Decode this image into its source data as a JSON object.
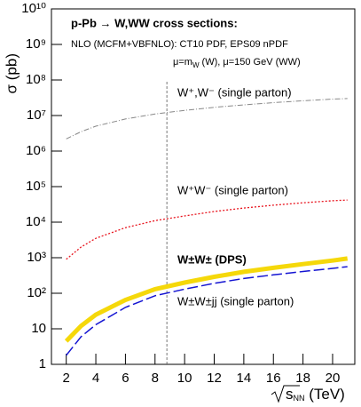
{
  "chart_data": {
    "type": "line",
    "title": "p-Pb → W,WW cross sections:",
    "subtitle": "NLO (MCFM+VBFNLO): CT10 PDF, EPS09 nPDF",
    "scale_note": {
      "text": "μ=m",
      "sub": "W",
      "rest": " (W), μ=150 GeV (WW)"
    },
    "ylabel": "σ (pb)",
    "xlabel": {
      "text": "s",
      "sub": "NN",
      "rest": " (TeV)"
    },
    "x": [
      2,
      3,
      4,
      6,
      8,
      10,
      12,
      14,
      16,
      18,
      20,
      21
    ],
    "series": [
      {
        "name": "W⁺,W⁻ (single parton)",
        "color": "#888888",
        "style": "dashdot",
        "values": [
          2200000,
          3500000,
          5000000,
          8000000,
          11000000,
          14000000,
          17000000,
          20000000,
          23000000,
          26000000,
          29000000,
          30000000
        ]
      },
      {
        "name": "W⁺W⁻ (single parton)",
        "color": "#e8141e",
        "style": "dotted",
        "values": [
          900,
          2000,
          3500,
          7000,
          11000,
          15000,
          20000,
          25000,
          30000,
          35000,
          40000,
          42000
        ]
      },
      {
        "name": "W±W± (DPS)",
        "color": "#f5d80a",
        "style": "thick",
        "values": [
          4.5,
          12,
          25,
          65,
          130,
          200,
          290,
          400,
          520,
          660,
          830,
          950
        ]
      },
      {
        "name": "W±W±jj (single parton)",
        "color": "#1414d2",
        "style": "dashed",
        "values": [
          1.8,
          6,
          13,
          40,
          85,
          130,
          190,
          260,
          330,
          410,
          500,
          560
        ]
      }
    ],
    "vline": 8.8,
    "xlim": [
      1,
      21.5
    ],
    "xticks": [
      2,
      4,
      6,
      8,
      10,
      12,
      14,
      16,
      18,
      20
    ],
    "ylim": [
      1,
      10000000000
    ],
    "log_y": true,
    "yticks": [
      1,
      10,
      {
        "value": 100,
        "label": "10²"
      },
      {
        "value": 1000,
        "label": "10³"
      },
      {
        "value": 10000,
        "label": "10⁴"
      },
      {
        "value": 100000,
        "label": "10⁵"
      },
      {
        "value": 1000000,
        "label": "10⁶"
      },
      {
        "value": 10000000,
        "label": "10⁷"
      },
      {
        "value": 100000000,
        "label": "10⁸"
      },
      {
        "value": 1000000000,
        "label": "10⁹"
      },
      {
        "value": 10000000000,
        "label": "10¹⁰"
      }
    ]
  }
}
